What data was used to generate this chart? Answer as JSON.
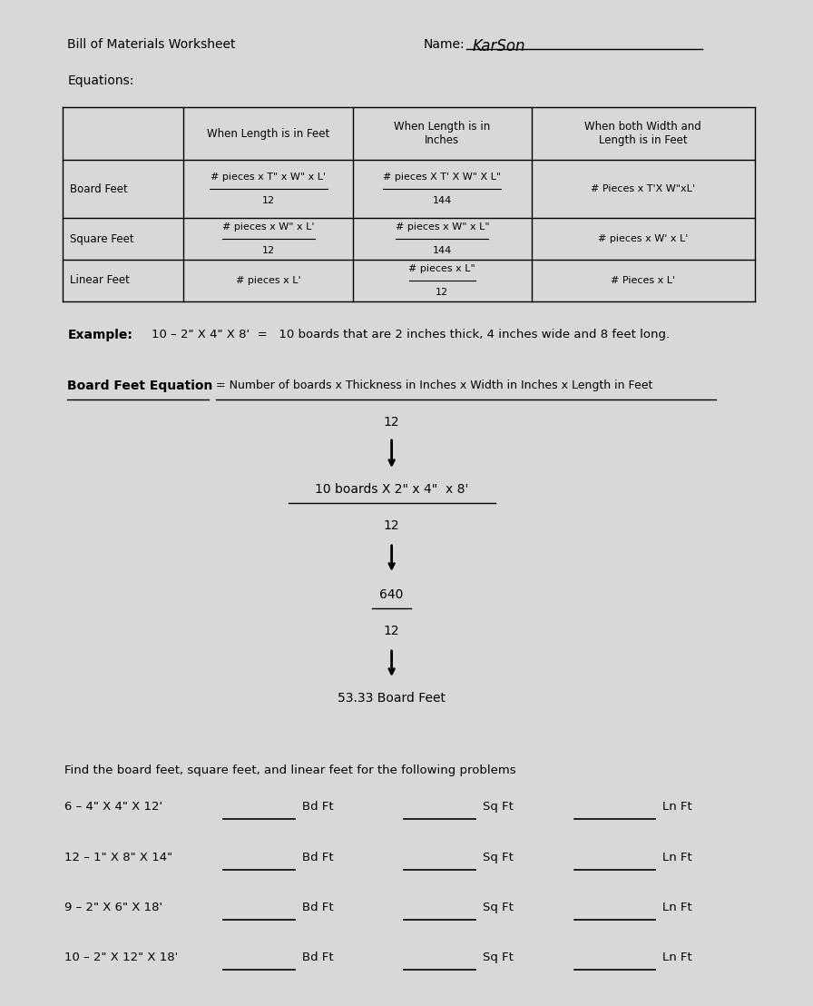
{
  "bg_color": "#d8d8d8",
  "title": "Bill of Materials Worksheet",
  "name_label": "Name:",
  "name_value": "KarSon",
  "equations_label": "Equations:",
  "table_headers": [
    "",
    "When Length is in Feet",
    "When Length is in\nInches",
    "When both Width and\nLength is in Feet"
  ],
  "table_rows": [
    [
      "Board Feet",
      "# pieces x T\" x W\" x L'\n12",
      "# pieces X T' X W\" X L\"\n144",
      "# Pieces x T'X W\"xL'"
    ],
    [
      "Square Feet",
      "# pieces x W\" x L'\n12",
      "# pieces x W\" x L\"\n144",
      "# pieces x W' x L'"
    ],
    [
      "Linear Feet",
      "# pieces x L'",
      "# pieces x L\"\n12",
      "# Pieces x L'"
    ]
  ],
  "example_label": "Example:",
  "example_text": "10 – 2\" X 4\" X 8'  =   10 boards that are 2 inches thick, 4 inches wide and 8 feet long.",
  "bfe_label": "Board Feet Equation",
  "bfe_eq": "= Number of boards x Thickness in Inches x Width in Inches x Length in Feet",
  "step1": "12",
  "step2": "10 boards X 2\" x 4\"  x 8'",
  "step3": "12",
  "step4": "640",
  "step5": "12",
  "step6": "53.33 Board Feet",
  "find_text": "Find the board feet, square feet, and linear feet for the following problems",
  "problems": [
    "6 – 4\" X 4\" X 12'",
    "12 – 1\" X 8\" X 14\"",
    "9 – 2\" X 6\" X 18'",
    "10 – 2\" X 12\" X 18'"
  ],
  "problem_labels": [
    "Bd Ft",
    "Sq Ft",
    "Ln Ft"
  ]
}
